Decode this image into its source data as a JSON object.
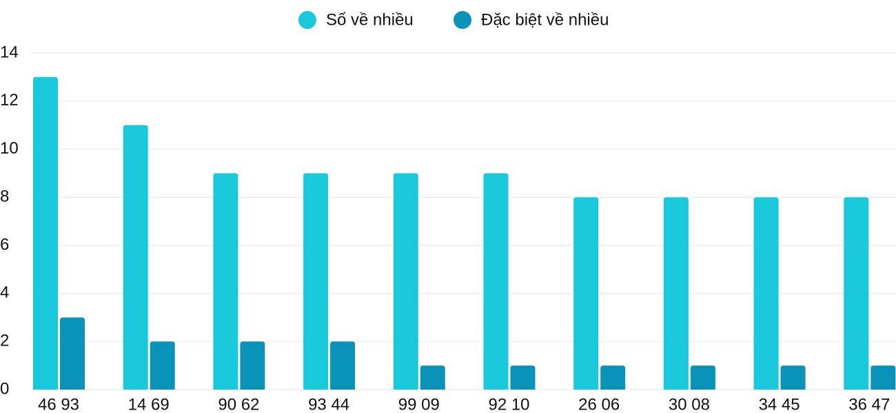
{
  "chart_data": {
    "type": "bar",
    "categories": [
      "46 93",
      "14 69",
      "90 62",
      "93 44",
      "99 09",
      "92 10",
      "26 06",
      "30 08",
      "34 45",
      "36 47"
    ],
    "series": [
      {
        "name": "Số về nhiều",
        "color": "#1ac8db",
        "values": [
          13,
          11,
          9,
          9,
          9,
          9,
          8,
          8,
          8,
          8
        ]
      },
      {
        "name": "Đặc biệt về nhiều",
        "color": "#0993b8",
        "values": [
          3,
          2,
          2,
          2,
          1,
          1,
          1,
          1,
          1,
          1
        ]
      }
    ],
    "ylim": [
      0,
      14
    ],
    "yticks": [
      0,
      2,
      4,
      6,
      8,
      10,
      12,
      14
    ],
    "grid": true,
    "legend": "top"
  }
}
